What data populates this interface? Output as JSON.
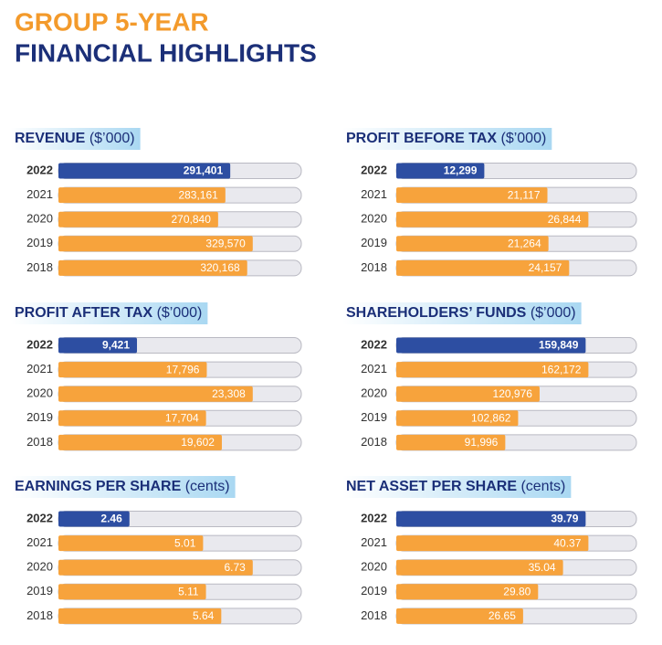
{
  "header": {
    "line1": "GROUP 5-YEAR",
    "line2": "FINANCIAL HIGHLIGHTS"
  },
  "chart_data": [
    {
      "type": "hbar",
      "title": "REVENUE",
      "unit": "($’000)",
      "categories": [
        "2022",
        "2021",
        "2020",
        "2019",
        "2018"
      ],
      "values": [
        291401,
        283161,
        270840,
        329570,
        320168
      ],
      "value_labels": [
        "291,401",
        "283,161",
        "270,840",
        "329,570",
        "320,168"
      ],
      "colors": [
        "#2d4ea2",
        "#f7a33c",
        "#f7a33c",
        "#f7a33c",
        "#f7a33c"
      ]
    },
    {
      "type": "hbar",
      "title": "PROFIT BEFORE TAX",
      "unit": "($’000)",
      "categories": [
        "2022",
        "2021",
        "2020",
        "2019",
        "2018"
      ],
      "values": [
        12299,
        21117,
        26844,
        21264,
        24157
      ],
      "value_labels": [
        "12,299",
        "21,117",
        "26,844",
        "21,264",
        "24,157"
      ],
      "colors": [
        "#2d4ea2",
        "#f7a33c",
        "#f7a33c",
        "#f7a33c",
        "#f7a33c"
      ]
    },
    {
      "type": "hbar",
      "title": "PROFIT AFTER TAX",
      "unit": "($’000)",
      "categories": [
        "2022",
        "2021",
        "2020",
        "2019",
        "2018"
      ],
      "values": [
        9421,
        17796,
        23308,
        17704,
        19602
      ],
      "value_labels": [
        "9,421",
        "17,796",
        "23,308",
        "17,704",
        "19,602"
      ],
      "colors": [
        "#2d4ea2",
        "#f7a33c",
        "#f7a33c",
        "#f7a33c",
        "#f7a33c"
      ]
    },
    {
      "type": "hbar",
      "title": "SHAREHOLDERS’ FUNDS",
      "unit": "($’000)",
      "categories": [
        "2022",
        "2021",
        "2020",
        "2019",
        "2018"
      ],
      "values": [
        159849,
        162172,
        120976,
        102862,
        91996
      ],
      "value_labels": [
        "159,849",
        "162,172",
        "120,976",
        "102,862",
        "91,996"
      ],
      "colors": [
        "#2d4ea2",
        "#f7a33c",
        "#f7a33c",
        "#f7a33c",
        "#f7a33c"
      ]
    },
    {
      "type": "hbar",
      "title": "EARNINGS PER SHARE",
      "unit": "(cents)",
      "categories": [
        "2022",
        "2021",
        "2020",
        "2019",
        "2018"
      ],
      "values": [
        2.46,
        5.01,
        6.73,
        5.11,
        5.64
      ],
      "value_labels": [
        "2.46",
        "5.01",
        "6.73",
        "5.11",
        "5.64"
      ],
      "colors": [
        "#2d4ea2",
        "#f7a33c",
        "#f7a33c",
        "#f7a33c",
        "#f7a33c"
      ]
    },
    {
      "type": "hbar",
      "title": "NET ASSET PER SHARE",
      "unit": "(cents)",
      "categories": [
        "2022",
        "2021",
        "2020",
        "2019",
        "2018"
      ],
      "values": [
        39.79,
        40.37,
        35.04,
        29.8,
        26.65
      ],
      "value_labels": [
        "39.79",
        "40.37",
        "35.04",
        "29.80",
        "26.65"
      ],
      "colors": [
        "#2d4ea2",
        "#f7a33c",
        "#f7a33c",
        "#f7a33c",
        "#f7a33c"
      ]
    }
  ]
}
